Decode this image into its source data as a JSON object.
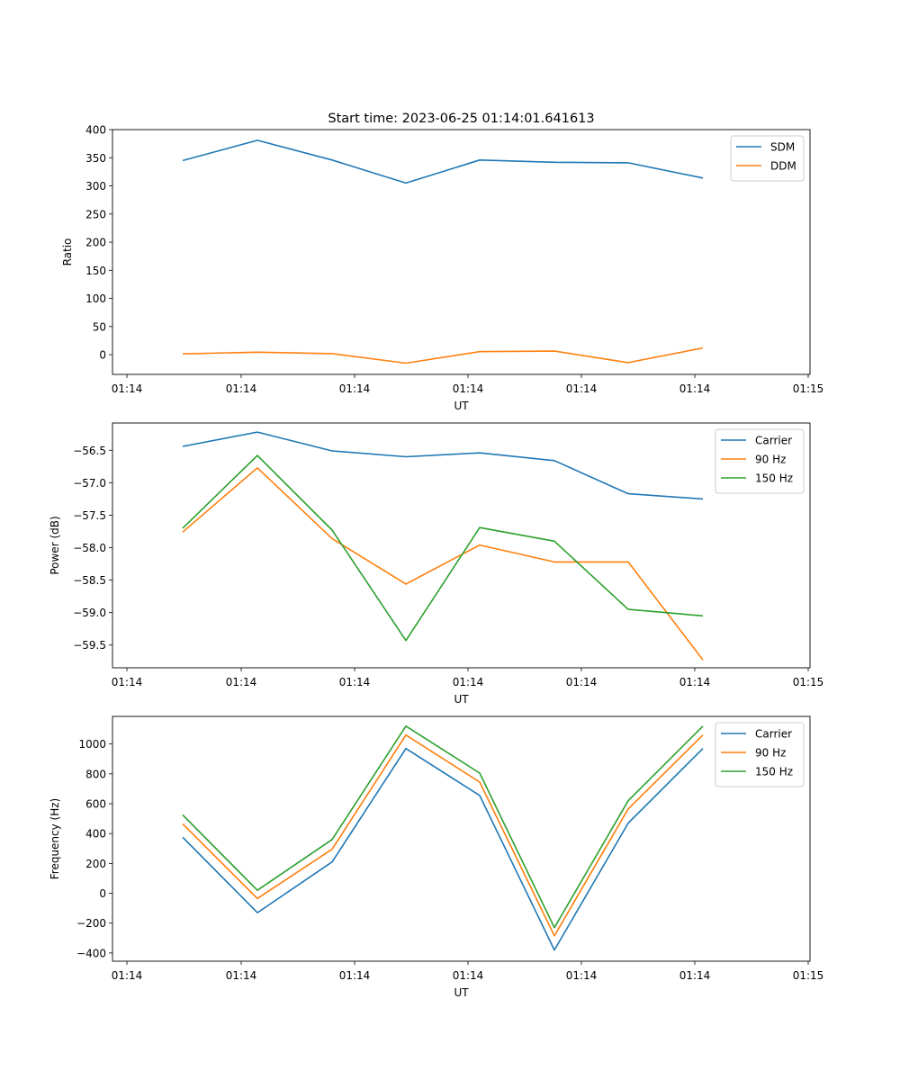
{
  "figure_title": "Start time: 2023-06-25 01:14:01.641613",
  "colors": {
    "blue": "#1f77b4",
    "orange": "#ff7f0e",
    "green": "#2ca02c"
  },
  "chart_data": [
    {
      "type": "line",
      "title": "Start time: 2023-06-25 01:14:01.641613",
      "xlabel": "UT",
      "ylabel": "Ratio",
      "x_tick_labels": [
        "01:14",
        "01:14",
        "01:14",
        "01:14",
        "01:14",
        "01:14",
        "01:15"
      ],
      "y_ticks": [
        0,
        50,
        100,
        150,
        200,
        250,
        300,
        350,
        400
      ],
      "y_tick_labels": [
        "0",
        "50",
        "100",
        "150",
        "200",
        "250",
        "300",
        "350",
        "400"
      ],
      "ylim": [
        -35,
        400
      ],
      "legend": "top-right",
      "grid": false,
      "series": [
        {
          "name": "SDM",
          "color": "#1f77b4",
          "values": [
            345,
            381,
            346,
            305,
            346,
            342,
            341,
            314
          ]
        },
        {
          "name": "DDM",
          "color": "#ff7f0e",
          "values": [
            1.5,
            4.5,
            2,
            -15,
            5.5,
            6.5,
            -14,
            12
          ]
        }
      ]
    },
    {
      "type": "line",
      "xlabel": "UT",
      "ylabel": "Power (dB)",
      "x_tick_labels": [
        "01:14",
        "01:14",
        "01:14",
        "01:14",
        "01:14",
        "01:14",
        "01:15"
      ],
      "y_ticks": [
        -56.5,
        -57.0,
        -57.5,
        -58.0,
        -58.5,
        -59.0,
        -59.5
      ],
      "y_tick_labels": [
        "−56.5",
        "−57.0",
        "−57.5",
        "−58.0",
        "−58.5",
        "−59.0",
        "−59.5"
      ],
      "ylim": [
        -59.85,
        -56.08
      ],
      "legend": "top-right",
      "grid": false,
      "series": [
        {
          "name": "Carrier",
          "color": "#1f77b4",
          "values": [
            -56.44,
            -56.22,
            -56.51,
            -56.6,
            -56.54,
            -56.66,
            -57.17,
            -57.25
          ]
        },
        {
          "name": "90 Hz",
          "color": "#ff7f0e",
          "values": [
            -57.76,
            -56.77,
            -57.86,
            -58.56,
            -57.96,
            -58.22,
            -58.22,
            -59.73
          ]
        },
        {
          "name": "150 Hz",
          "color": "#2ca02c",
          "values": [
            -57.7,
            -56.58,
            -57.73,
            -59.43,
            -57.69,
            -57.9,
            -58.95,
            -59.05
          ]
        }
      ]
    },
    {
      "type": "line",
      "xlabel": "UT",
      "ylabel": "Frequency (Hz)",
      "x_tick_labels": [
        "01:14",
        "01:14",
        "01:14",
        "01:14",
        "01:14",
        "01:14",
        "01:15"
      ],
      "y_ticks": [
        -400,
        -200,
        0,
        200,
        400,
        600,
        800,
        1000
      ],
      "y_tick_labels": [
        "−400",
        "−200",
        "0",
        "200",
        "400",
        "600",
        "800",
        "1000"
      ],
      "ylim": [
        -455,
        1185
      ],
      "legend": "top-right",
      "grid": false,
      "series": [
        {
          "name": "Carrier",
          "color": "#1f77b4",
          "values": [
            375,
            -130,
            210,
            970,
            655,
            -380,
            470,
            970
          ]
        },
        {
          "name": "90 Hz",
          "color": "#ff7f0e",
          "values": [
            465,
            -35,
            295,
            1060,
            745,
            -285,
            565,
            1060
          ]
        },
        {
          "name": "150 Hz",
          "color": "#2ca02c",
          "values": [
            525,
            20,
            360,
            1120,
            805,
            -230,
            620,
            1120
          ]
        }
      ]
    }
  ]
}
